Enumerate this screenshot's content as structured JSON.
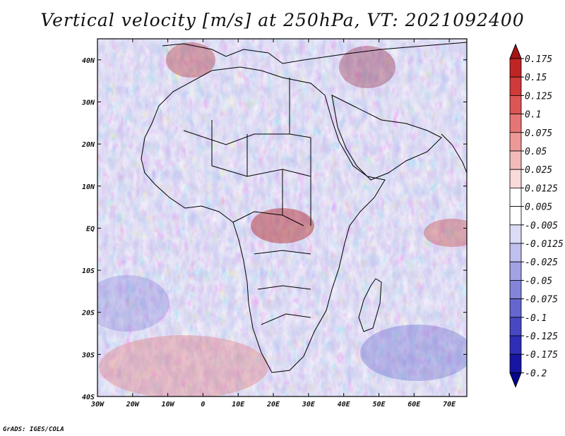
{
  "title": "Vertical velocity [m/s] at 250hPa, VT: 2021092400",
  "lon_labels": [
    "30W",
    "20W",
    "10W",
    "0",
    "10E",
    "20E",
    "30E",
    "40E",
    "50E",
    "60E",
    "70E"
  ],
  "lat_labels": [
    "40N",
    "30N",
    "20N",
    "10N",
    "EQ",
    "10S",
    "20S",
    "30S",
    "40S"
  ],
  "lon_range": [
    -30,
    75
  ],
  "lat_range": [
    -40,
    45
  ],
  "colorbar": {
    "levels": [
      "0.175",
      "0.15",
      "0.125",
      "0.1",
      "0.075",
      "0.05",
      "0.025",
      "0.0125",
      "0.005",
      "-0.005",
      "-0.0125",
      "-0.025",
      "-0.05",
      "-0.075",
      "-0.1",
      "-0.125",
      "-0.175",
      "-0.2"
    ],
    "colors": [
      "#a51515",
      "#c02525",
      "#cf3b3b",
      "#dc5656",
      "#e67676",
      "#ee9898",
      "#f4baba",
      "#f9dada",
      "#ffffff",
      "#ffffff",
      "#dcdcf6",
      "#c0c0ee",
      "#a2a2e4",
      "#8484da",
      "#6666d0",
      "#4848c4",
      "#2e2eb6",
      "#1616a2",
      "#06068c"
    ]
  },
  "credit": "GrADS: IGES/COLA",
  "colors": {
    "positive": "#d04848",
    "negative": "#5050d0",
    "neutral": "#f5f5fa",
    "coastline": "#000000"
  }
}
